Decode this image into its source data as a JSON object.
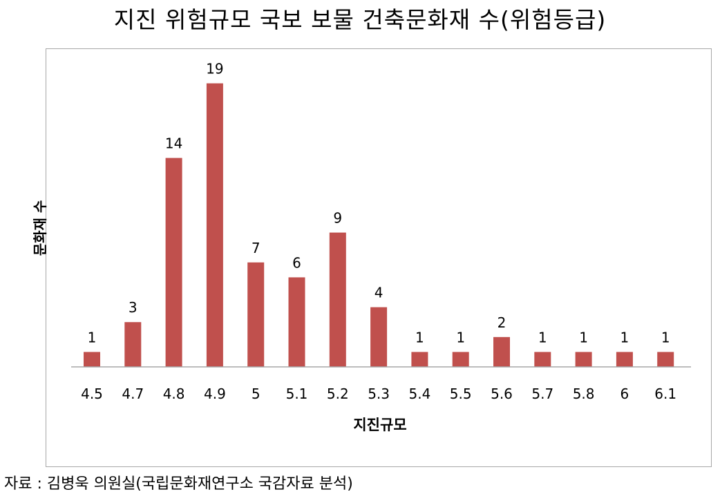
{
  "chart_data": {
    "type": "bar",
    "title": "지진 위험규모 국보 보물 건축문화재 수(위험등급)",
    "xlabel": "지진규모",
    "ylabel": "문화재 수",
    "categories": [
      "4.5",
      "4.7",
      "4.8",
      "4.9",
      "5",
      "5.1",
      "5.2",
      "5.3",
      "5.4",
      "5.5",
      "5.6",
      "5.7",
      "5.8",
      "6",
      "6.1"
    ],
    "values": [
      1,
      3,
      14,
      19,
      7,
      6,
      9,
      4,
      1,
      1,
      2,
      1,
      1,
      1,
      1
    ],
    "ylim": [
      0,
      20
    ],
    "grid": false,
    "legend": "none",
    "bar_color": "#c0504d"
  },
  "source": "자료 : 김병욱 의원실(국립문화재연구소 국감자료 분석)"
}
